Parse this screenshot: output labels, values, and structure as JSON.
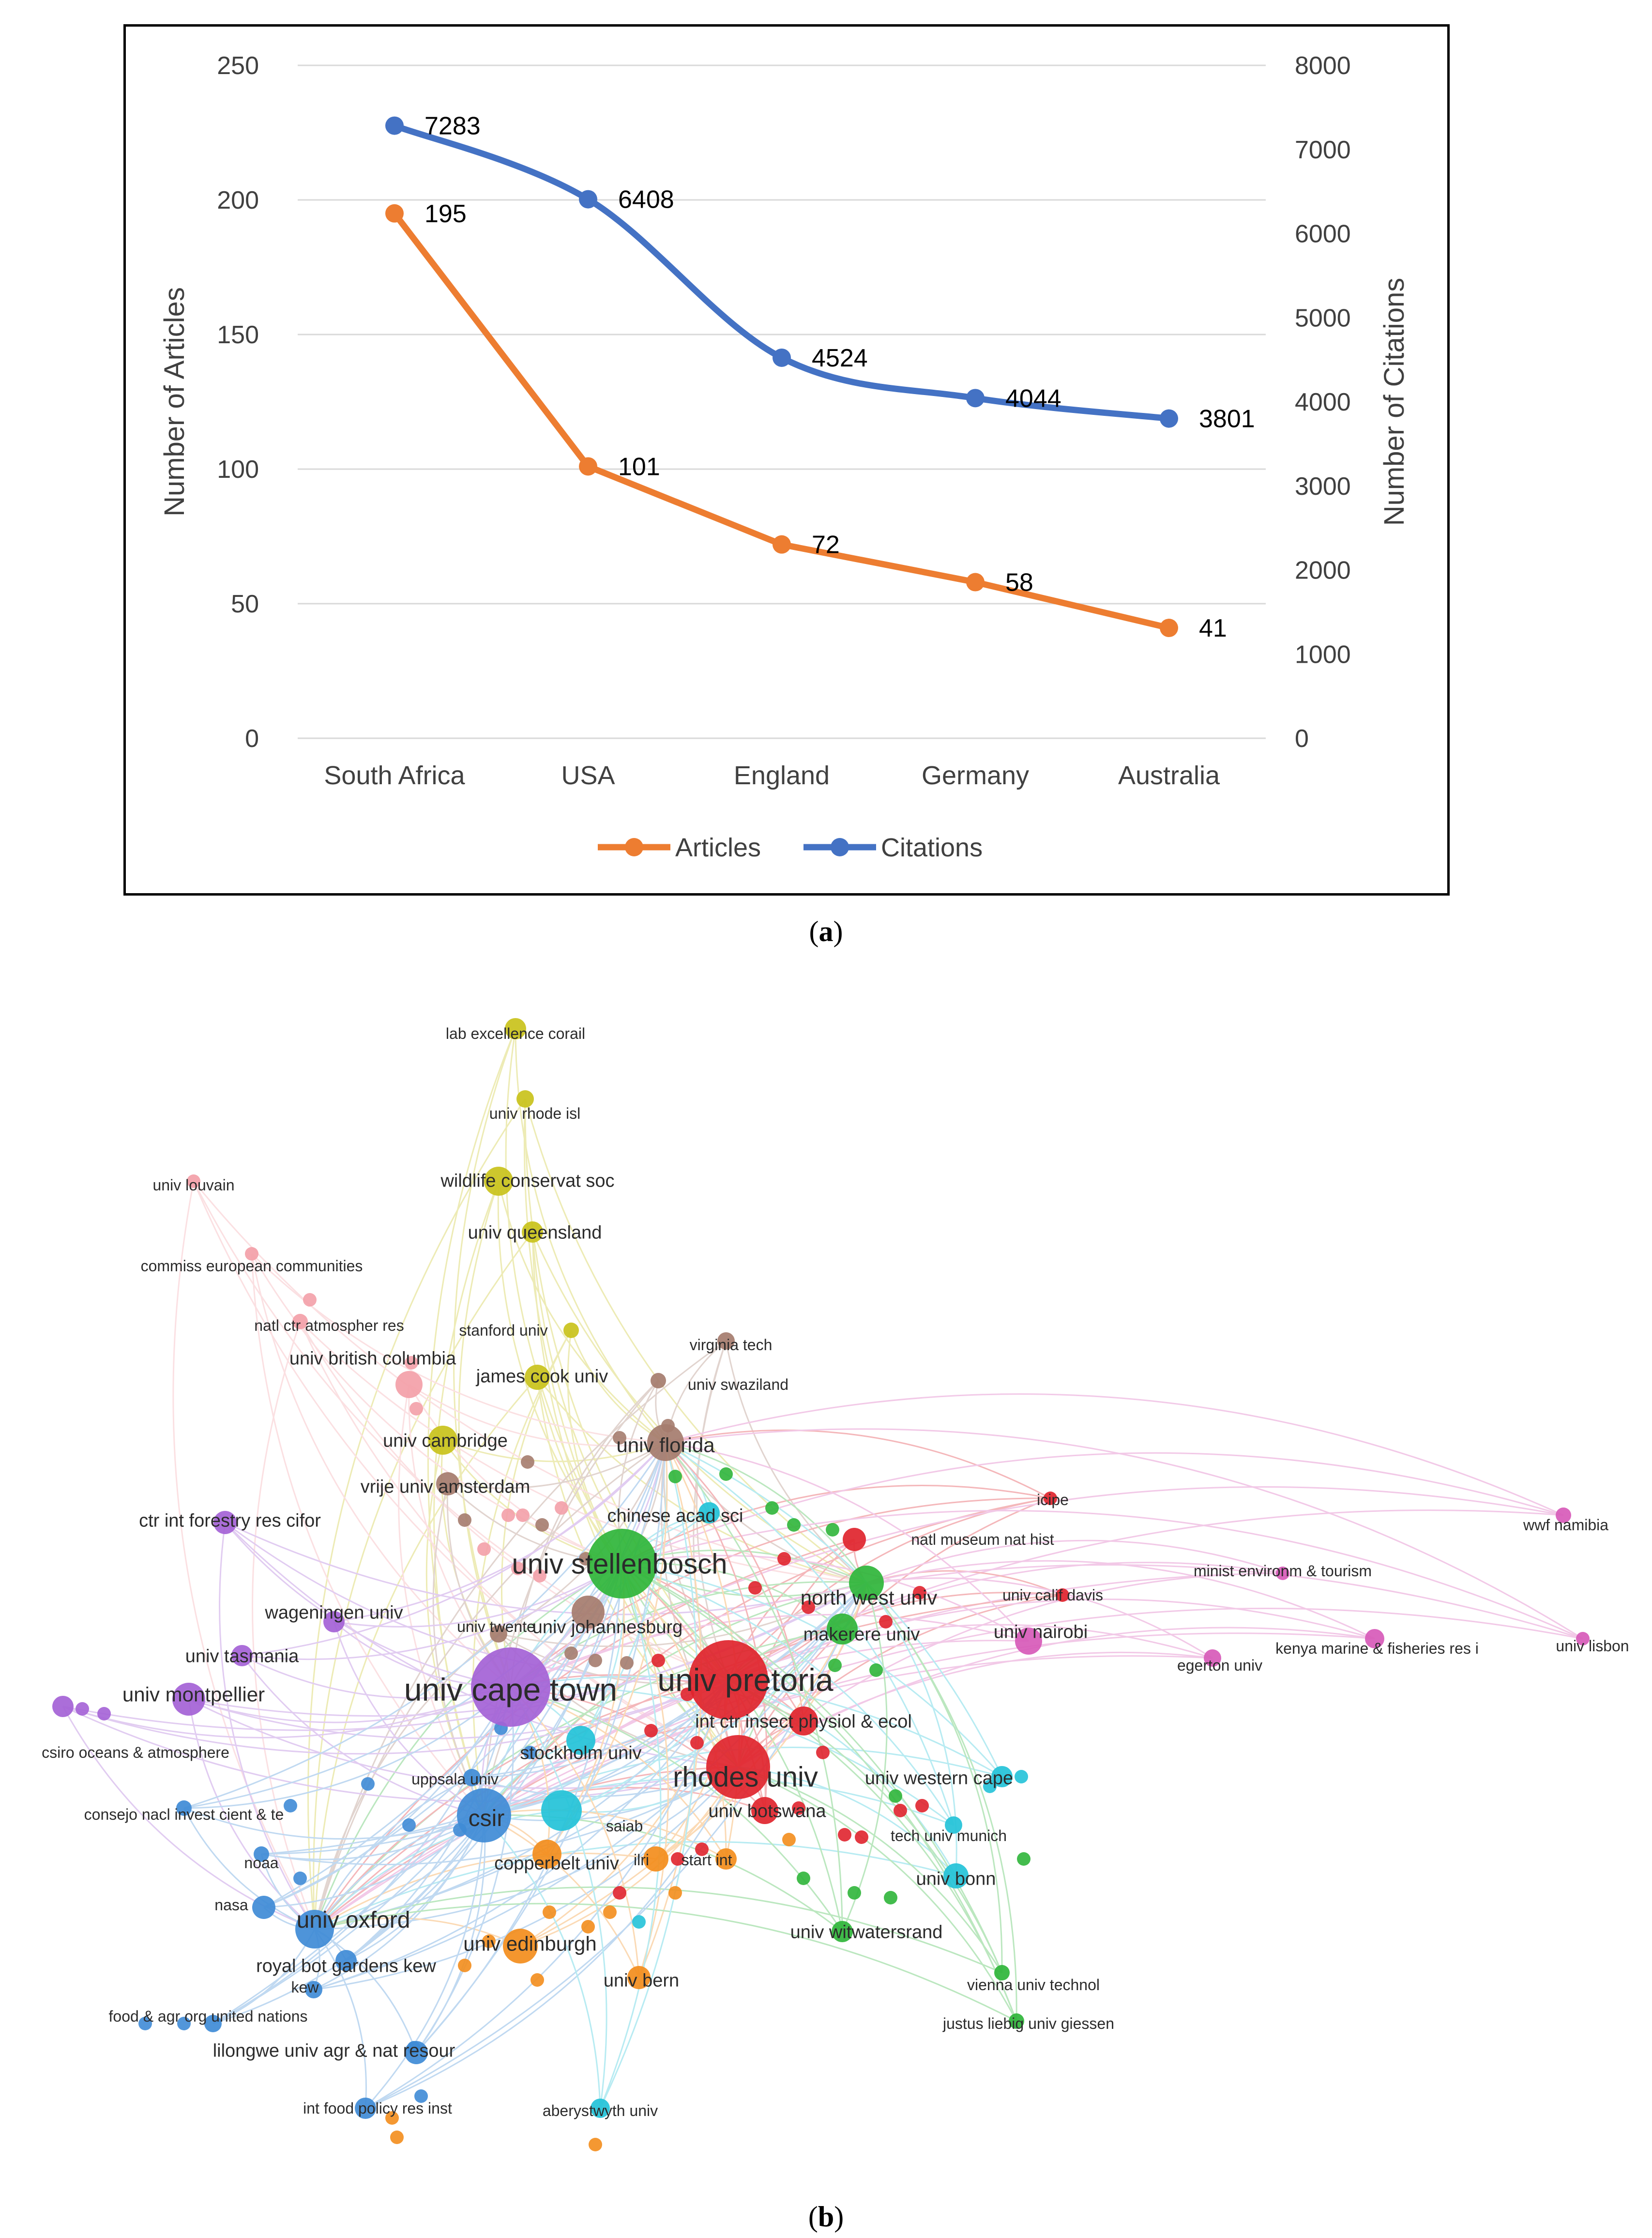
{
  "figure_a": {
    "caption_label": "a",
    "chart_data": {
      "type": "line",
      "categories": [
        "South Africa",
        "USA",
        "England",
        "Germany",
        "Australia"
      ],
      "series": [
        {
          "name": "Articles",
          "axis": "left",
          "color": "#ED7D31",
          "values": [
            195,
            101,
            72,
            58,
            41
          ]
        },
        {
          "name": "Citations",
          "axis": "right",
          "color": "#4472C4",
          "values": [
            7283,
            6408,
            4524,
            4044,
            3801
          ]
        }
      ],
      "ylabel": "Number of Articles",
      "y2label": "Number of Citations",
      "ylim": [
        0,
        250
      ],
      "y2lim": [
        0,
        8000
      ],
      "yticks": [
        0,
        50,
        100,
        150,
        200,
        250
      ],
      "y2ticks": [
        0,
        1000,
        2000,
        3000,
        4000,
        5000,
        6000,
        7000,
        8000
      ],
      "grid": true,
      "legend": "bottom"
    }
  },
  "figure_b": {
    "caption_label": "b",
    "network": {
      "type": "co-authorship network",
      "nodes": [
        {
          "label": "lab excellence corail",
          "cluster": "yellow",
          "weight": 1
        },
        {
          "label": "univ rhode isl",
          "cluster": "yellow",
          "weight": 1
        },
        {
          "label": "wildlife conservat soc",
          "cluster": "yellow",
          "weight": 2
        },
        {
          "label": "univ queensland",
          "cluster": "yellow",
          "weight": 2
        },
        {
          "label": "stanford univ",
          "cluster": "yellow",
          "weight": 1
        },
        {
          "label": "james cook univ",
          "cluster": "yellow",
          "weight": 2
        },
        {
          "label": "univ cambridge",
          "cluster": "yellow",
          "weight": 2
        },
        {
          "label": "univ louvain",
          "cluster": "pink",
          "weight": 1
        },
        {
          "label": "commiss european communities",
          "cluster": "pink",
          "weight": 1
        },
        {
          "label": "natl ctr atmospher res",
          "cluster": "pink",
          "weight": 1
        },
        {
          "label": "univ british columbia",
          "cluster": "pink",
          "weight": 2
        },
        {
          "label": "virginia tech",
          "cluster": "brown",
          "weight": 1
        },
        {
          "label": "univ swaziland",
          "cluster": "brown",
          "weight": 1
        },
        {
          "label": "univ florida",
          "cluster": "brown",
          "weight": 3
        },
        {
          "label": "vrije univ amsterdam",
          "cluster": "brown",
          "weight": 2
        },
        {
          "label": "ctr int forestry res cifor",
          "cluster": "purple",
          "weight": 2
        },
        {
          "label": "chinese acad sci",
          "cluster": "cyan",
          "weight": 2
        },
        {
          "label": "univ stellenbosch",
          "cluster": "green",
          "weight": 6
        },
        {
          "label": "icipe",
          "cluster": "red",
          "weight": 1
        },
        {
          "label": "natl museum nat hist",
          "cluster": "red",
          "weight": 1
        },
        {
          "label": "wwf namibia",
          "cluster": "magenta",
          "weight": 1
        },
        {
          "label": "minist environm & tourism",
          "cluster": "magenta",
          "weight": 1
        },
        {
          "label": "north west univ",
          "cluster": "green",
          "weight": 3
        },
        {
          "label": "univ calif davis",
          "cluster": "red",
          "weight": 1
        },
        {
          "label": "wageningen univ",
          "cluster": "purple",
          "weight": 2
        },
        {
          "label": "univ twente",
          "cluster": "brown",
          "weight": 1
        },
        {
          "label": "univ johannesburg",
          "cluster": "brown",
          "weight": 2
        },
        {
          "label": "makerere univ",
          "cluster": "green",
          "weight": 2
        },
        {
          "label": "univ nairobi",
          "cluster": "magenta",
          "weight": 2
        },
        {
          "label": "kenya marine & fisheries res i",
          "cluster": "magenta",
          "weight": 1
        },
        {
          "label": "univ lisbon",
          "cluster": "magenta",
          "weight": 1
        },
        {
          "label": "egerton univ",
          "cluster": "magenta",
          "weight": 1
        },
        {
          "label": "univ tasmania",
          "cluster": "purple",
          "weight": 2
        },
        {
          "label": "univ montpellier",
          "cluster": "purple",
          "weight": 3
        },
        {
          "label": "univ cape town",
          "cluster": "purple",
          "weight": 8
        },
        {
          "label": "univ pretoria",
          "cluster": "red",
          "weight": 8
        },
        {
          "label": "int ctr insect physiol & ecol",
          "cluster": "red",
          "weight": 2
        },
        {
          "label": "csiro oceans & atmosphere",
          "cluster": "purple",
          "weight": 1
        },
        {
          "label": "stockholm univ",
          "cluster": "cyan",
          "weight": 2
        },
        {
          "label": "rhodes univ",
          "cluster": "red",
          "weight": 6
        },
        {
          "label": "univ western cape",
          "cluster": "cyan",
          "weight": 2
        },
        {
          "label": "uppsala univ",
          "cluster": "blue",
          "weight": 1
        },
        {
          "label": "consejo nacl invest cient & te",
          "cluster": "blue",
          "weight": 1
        },
        {
          "label": "csir",
          "cluster": "blue",
          "weight": 5
        },
        {
          "label": "univ botswana",
          "cluster": "red",
          "weight": 2
        },
        {
          "label": "saiab",
          "cluster": "cyan",
          "weight": 1
        },
        {
          "label": "tech univ munich",
          "cluster": "cyan",
          "weight": 1
        },
        {
          "label": "noaa",
          "cluster": "blue",
          "weight": 1
        },
        {
          "label": "copperbelt univ",
          "cluster": "orange",
          "weight": 2
        },
        {
          "label": "ilri",
          "cluster": "orange",
          "weight": 1
        },
        {
          "label": "start int",
          "cluster": "orange",
          "weight": 1
        },
        {
          "label": "univ bonn",
          "cluster": "cyan",
          "weight": 2
        },
        {
          "label": "nasa",
          "cluster": "blue",
          "weight": 1
        },
        {
          "label": "univ oxford",
          "cluster": "blue",
          "weight": 4
        },
        {
          "label": "univ witwatersrand",
          "cluster": "green",
          "weight": 2
        },
        {
          "label": "univ edinburgh",
          "cluster": "orange",
          "weight": 3
        },
        {
          "label": "royal bot gardens kew",
          "cluster": "blue",
          "weight": 2
        },
        {
          "label": "kew",
          "cluster": "blue",
          "weight": 1
        },
        {
          "label": "univ bern",
          "cluster": "orange",
          "weight": 2
        },
        {
          "label": "vienna univ technol",
          "cluster": "green",
          "weight": 1
        },
        {
          "label": "food & agr org united nations",
          "cluster": "blue",
          "weight": 1
        },
        {
          "label": "justus liebig univ giessen",
          "cluster": "green",
          "weight": 1
        },
        {
          "label": "lilongwe univ agr & nat resour",
          "cluster": "blue",
          "weight": 2
        },
        {
          "label": "int food policy res inst",
          "cluster": "blue",
          "weight": 1
        },
        {
          "label": "aberystwyth univ",
          "cluster": "cyan",
          "weight": 1
        }
      ]
    }
  }
}
